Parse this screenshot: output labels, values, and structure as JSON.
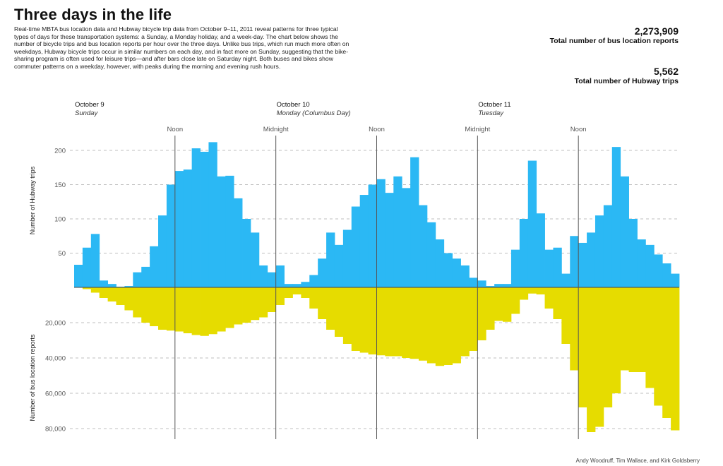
{
  "title": "Three days in the life",
  "intro": "Real-time MBTA bus location data and Hubway bicycle trip data from October 9–11, 2011 reveal patterns for three typical types of days for these transportation systems: a Sunday, a Monday holiday, and a week-day. The chart below shows the number of bicycle trips and bus location reports per hour over the three days. Unlike bus trips, which run much more often on weekdays, Hubway bicycle trips occur in similar numbers on each day, and in fact more on Sunday, suggesting that the bike-sharing program is often used for leisure trips—and after bars close late on Saturday night. Both buses and bikes show commuter patterns on a weekday, however, with peaks during the morning and evening rush hours.",
  "stats": {
    "bus_value": "2,273,909",
    "bus_label": "Total number of bus location reports",
    "hubway_value": "5,562",
    "hubway_label": "Total number of Hubway trips"
  },
  "credit": "Andy Woodruff, Tim Wallace, and Kirk Goldsberry",
  "colors": {
    "hubway": "#2bb8f4",
    "bus": "#e6dc00",
    "marker": "#555555",
    "grid": "#aaaaaa"
  },
  "chart_data": {
    "type": "bar",
    "title": "Three days in the life",
    "days": [
      {
        "date": "October 9",
        "name": "Sunday"
      },
      {
        "date": "October 10",
        "name": "Monday (Columbus Day)"
      },
      {
        "date": "October 11",
        "name": "Tuesday"
      }
    ],
    "markers": [
      "Noon",
      "Midnight",
      "Noon",
      "Midnight",
      "Noon"
    ],
    "marker_hours": [
      12,
      24,
      36,
      48,
      60
    ],
    "hubway_axis": {
      "label": "Number of Hubway trips",
      "ticks": [
        50,
        100,
        150,
        200
      ],
      "tick_labels": [
        "50",
        "100",
        "150",
        "200"
      ],
      "ylim": [
        0,
        200
      ]
    },
    "bus_axis": {
      "label": "Number of bus location reports",
      "ticks": [
        20000,
        40000,
        60000,
        80000
      ],
      "tick_labels": [
        "20,000",
        "40,000",
        "60,000",
        "80,000"
      ],
      "ylim": [
        0,
        80000
      ]
    },
    "hours": 72,
    "series": [
      {
        "name": "Hubway trips per hour",
        "values": [
          33,
          58,
          78,
          10,
          5,
          1,
          2,
          22,
          30,
          60,
          105,
          150,
          170,
          172,
          203,
          198,
          212,
          162,
          163,
          130,
          100,
          80,
          32,
          22,
          32,
          5,
          5,
          8,
          18,
          42,
          80,
          62,
          84,
          118,
          135,
          150,
          158,
          138,
          162,
          145,
          190,
          120,
          95,
          70,
          50,
          42,
          32,
          14,
          10,
          2,
          5,
          5,
          55,
          100,
          185,
          108,
          55,
          58,
          20,
          75,
          65,
          80,
          105,
          120,
          205,
          162,
          100,
          70,
          62,
          48,
          35,
          20
        ]
      },
      {
        "name": "Bus location reports per hour",
        "values": [
          0,
          1000,
          3000,
          6000,
          8000,
          10000,
          13000,
          17000,
          20000,
          22000,
          24000,
          24500,
          25000,
          26000,
          27000,
          27500,
          26500,
          25000,
          23000,
          21000,
          20000,
          18500,
          17000,
          14000,
          10000,
          6000,
          4000,
          6000,
          12000,
          18000,
          24000,
          28000,
          32000,
          36000,
          37000,
          38000,
          38500,
          39000,
          39000,
          40000,
          40500,
          41500,
          43000,
          44500,
          44000,
          43000,
          39000,
          36000,
          30000,
          24000,
          19000,
          19500,
          15000,
          7000,
          3500,
          4000,
          12000,
          18000,
          32000,
          47000,
          68000,
          82000,
          79000,
          68000,
          60000,
          47000,
          48000,
          48000,
          57000,
          67000,
          74000,
          81000
        ]
      }
    ]
  }
}
